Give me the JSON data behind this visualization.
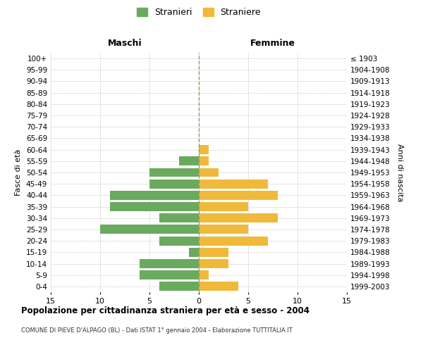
{
  "age_groups": [
    "0-4",
    "5-9",
    "10-14",
    "15-19",
    "20-24",
    "25-29",
    "30-34",
    "35-39",
    "40-44",
    "45-49",
    "50-54",
    "55-59",
    "60-64",
    "65-69",
    "70-74",
    "75-79",
    "80-84",
    "85-89",
    "90-94",
    "95-99",
    "100+"
  ],
  "birth_years": [
    "1999-2003",
    "1994-1998",
    "1989-1993",
    "1984-1988",
    "1979-1983",
    "1974-1978",
    "1969-1973",
    "1964-1968",
    "1959-1963",
    "1954-1958",
    "1949-1953",
    "1944-1948",
    "1939-1943",
    "1934-1938",
    "1929-1933",
    "1924-1928",
    "1919-1923",
    "1914-1918",
    "1909-1913",
    "1904-1908",
    "≤ 1903"
  ],
  "maschi": [
    4,
    6,
    6,
    1,
    4,
    10,
    4,
    9,
    9,
    5,
    5,
    2,
    0,
    0,
    0,
    0,
    0,
    0,
    0,
    0,
    0
  ],
  "femmine": [
    4,
    1,
    3,
    3,
    7,
    5,
    8,
    5,
    8,
    7,
    2,
    1,
    1,
    0,
    0,
    0,
    0,
    0,
    0,
    0,
    0
  ],
  "color_maschi": "#6aaa5e",
  "color_femmine": "#f0b93a",
  "title": "Popolazione per cittadinanza straniera per età e sesso - 2004",
  "subtitle": "COMUNE DI PIEVE D'ALPAGO (BL) - Dati ISTAT 1° gennaio 2004 - Elaborazione TUTTITALIA.IT",
  "ylabel_left": "Fasce di età",
  "ylabel_right": "Anni di nascita",
  "xlabel_left": "Maschi",
  "xlabel_right": "Femmine",
  "legend_maschi": "Stranieri",
  "legend_femmine": "Straniere",
  "xlim": 15,
  "background_color": "#ffffff",
  "grid_color": "#cccccc",
  "bar_height": 0.8
}
